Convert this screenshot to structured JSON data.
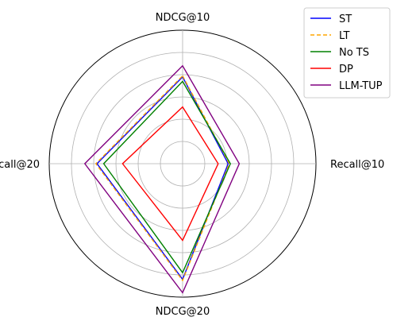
{
  "chart_data": {
    "type": "radar",
    "axes": [
      "NDCG@10",
      "Recall@10",
      "NDCG@20",
      "Recall@20"
    ],
    "rlim": [
      0,
      6
    ],
    "grid": true,
    "legend_position": "top-right",
    "series": [
      {
        "name": "ST",
        "color": "#0000ff",
        "dashed": false,
        "values": [
          3.9,
          2.05,
          5.2,
          3.85
        ]
      },
      {
        "name": "LT",
        "color": "#ffa500",
        "dashed": true,
        "values": [
          3.95,
          2.1,
          5.25,
          3.9
        ]
      },
      {
        "name": "No TS",
        "color": "#008000",
        "dashed": false,
        "values": [
          3.7,
          2.15,
          4.9,
          3.55
        ]
      },
      {
        "name": "DP",
        "color": "#ff0000",
        "dashed": false,
        "values": [
          2.55,
          1.6,
          3.45,
          2.7
        ]
      },
      {
        "name": "LLM-TUP",
        "color": "#800080",
        "dashed": false,
        "values": [
          4.4,
          2.55,
          5.8,
          4.4
        ]
      }
    ]
  }
}
